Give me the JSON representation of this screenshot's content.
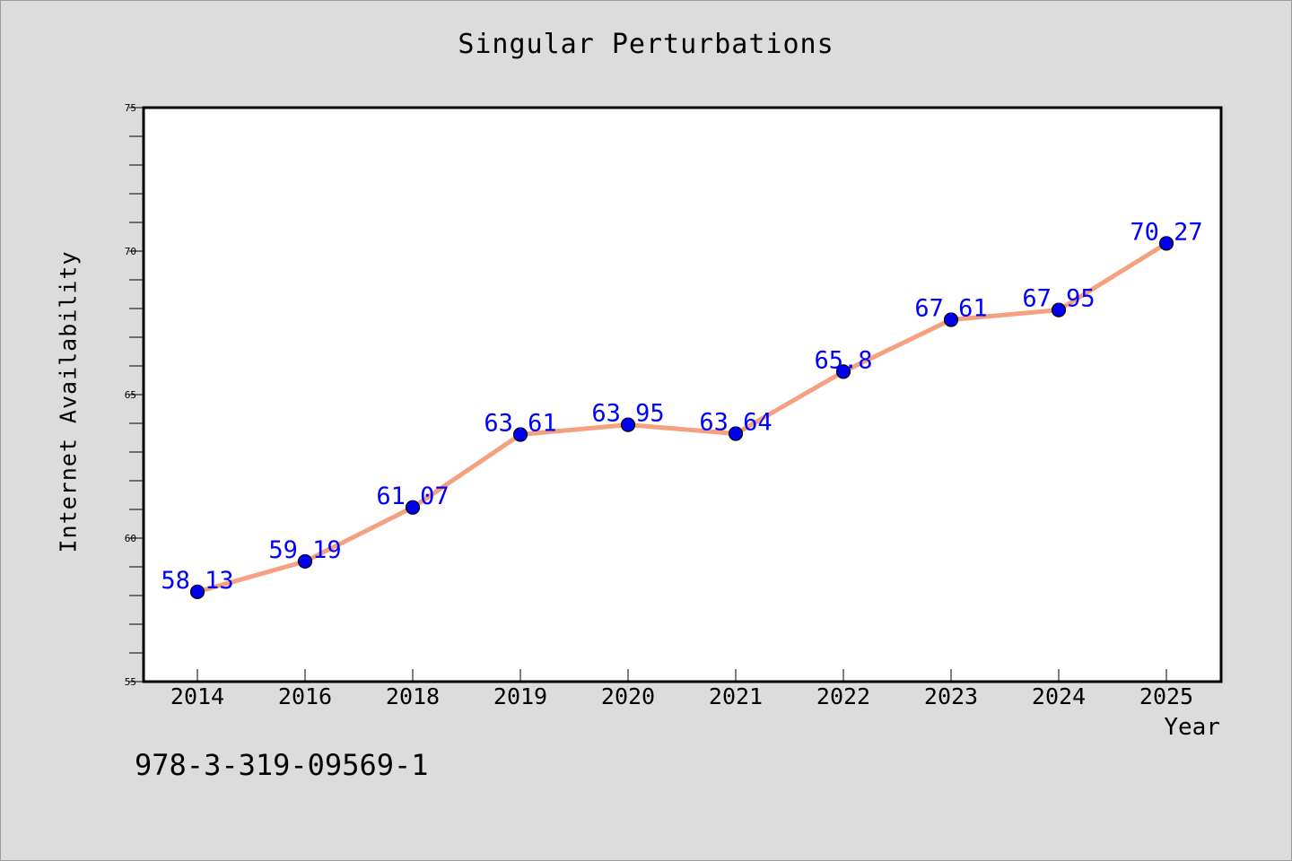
{
  "chart_data": {
    "type": "line",
    "title": "Singular Perturbations",
    "xlabel": "Year",
    "ylabel": "Internet Availability",
    "categories": [
      "2014",
      "2016",
      "2018",
      "2019",
      "2020",
      "2021",
      "2022",
      "2023",
      "2024",
      "2025"
    ],
    "values": [
      58.13,
      59.19,
      61.07,
      63.61,
      63.95,
      63.64,
      65.8,
      67.61,
      67.95,
      70.27
    ],
    "value_labels": [
      "58.13",
      "59.19",
      "61.07",
      "63.61",
      "63.95",
      "63.64",
      "65.8",
      "67.61",
      "67.95",
      "70.27"
    ],
    "ylim": [
      55,
      75
    ],
    "yticks": [
      55,
      60,
      65,
      70,
      75
    ],
    "grid": false,
    "legend": "none",
    "colors": {
      "line": "#f5a07f",
      "marker": "#0000ee",
      "data_label": "#0000ff",
      "background": "#dcdcdc",
      "plot_background": "#ffffff"
    }
  },
  "annotation": "978-3-319-09569-1"
}
